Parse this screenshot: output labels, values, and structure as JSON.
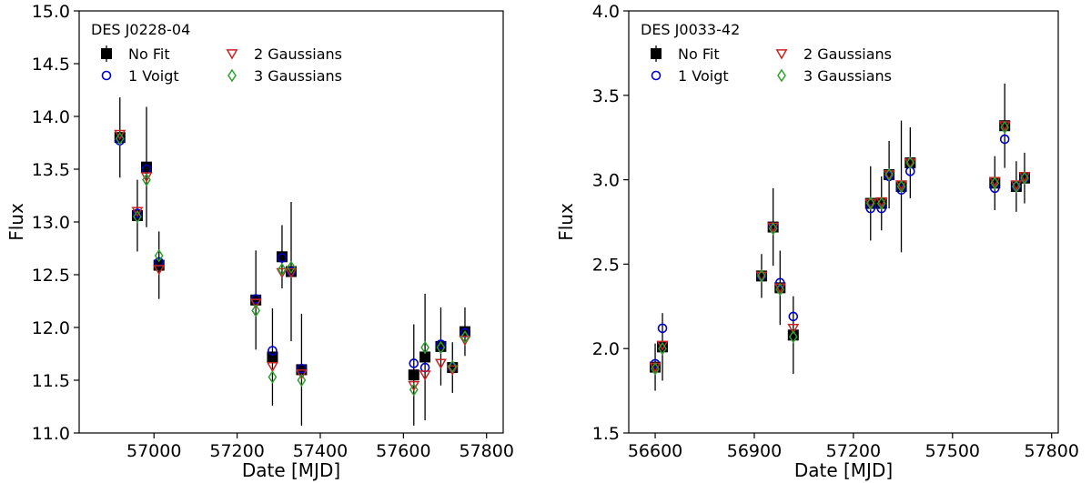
{
  "chart_data": [
    {
      "type": "scatter",
      "title": "DES J0228-04",
      "xlabel": "Date [MJD]",
      "ylabel": "Flux",
      "xlim": [
        56820,
        57840
      ],
      "ylim": [
        11.0,
        15.0
      ],
      "xticks": [
        57000,
        57200,
        57400,
        57600,
        57800
      ],
      "yticks": [
        11.0,
        11.5,
        12.0,
        12.5,
        13.0,
        13.5,
        14.0,
        14.5,
        15.0
      ],
      "legend_position": "top-left",
      "series": [
        {
          "name": "No Fit",
          "marker": "square",
          "color": "#000000",
          "points": [
            {
              "x": 56918,
              "y": 13.8,
              "err": 0.38
            },
            {
              "x": 56960,
              "y": 13.06,
              "err": 0.34
            },
            {
              "x": 56982,
              "y": 13.52,
              "err": 0.57
            },
            {
              "x": 57012,
              "y": 12.59,
              "err": 0.32
            },
            {
              "x": 57245,
              "y": 12.26,
              "err": 0.47
            },
            {
              "x": 57285,
              "y": 11.72,
              "err": 0.46
            },
            {
              "x": 57308,
              "y": 12.67,
              "err": 0.3
            },
            {
              "x": 57330,
              "y": 12.53,
              "err": 0.66
            },
            {
              "x": 57355,
              "y": 11.6,
              "err": 0.53
            },
            {
              "x": 57625,
              "y": 11.55,
              "err": 0.48
            },
            {
              "x": 57652,
              "y": 11.72,
              "err": 0.6
            },
            {
              "x": 57690,
              "y": 11.82,
              "err": 0.37
            },
            {
              "x": 57718,
              "y": 11.62,
              "err": 0.24
            },
            {
              "x": 57748,
              "y": 11.96,
              "err": 0.23
            }
          ]
        },
        {
          "name": "1 Voigt",
          "marker": "circle",
          "color": "#0000cc",
          "points": [
            {
              "x": 56918,
              "y": 13.77
            },
            {
              "x": 56960,
              "y": 13.08
            },
            {
              "x": 56982,
              "y": 13.5
            },
            {
              "x": 57012,
              "y": 12.62
            },
            {
              "x": 57245,
              "y": 12.27
            },
            {
              "x": 57285,
              "y": 11.78
            },
            {
              "x": 57308,
              "y": 12.66
            },
            {
              "x": 57330,
              "y": 12.53
            },
            {
              "x": 57355,
              "y": 11.61
            },
            {
              "x": 57625,
              "y": 11.66
            },
            {
              "x": 57652,
              "y": 11.62
            },
            {
              "x": 57690,
              "y": 11.84
            },
            {
              "x": 57718,
              "y": 11.62
            },
            {
              "x": 57748,
              "y": 11.95
            }
          ]
        },
        {
          "name": "2 Gaussians",
          "marker": "triangle-down",
          "color": "#cc2222",
          "points": [
            {
              "x": 56918,
              "y": 13.83
            },
            {
              "x": 56960,
              "y": 13.1
            },
            {
              "x": 56982,
              "y": 13.43
            },
            {
              "x": 57012,
              "y": 12.55
            },
            {
              "x": 57245,
              "y": 12.23
            },
            {
              "x": 57285,
              "y": 11.63
            },
            {
              "x": 57308,
              "y": 12.52
            },
            {
              "x": 57330,
              "y": 12.52
            },
            {
              "x": 57355,
              "y": 11.56
            },
            {
              "x": 57625,
              "y": 11.45
            },
            {
              "x": 57652,
              "y": 11.55
            },
            {
              "x": 57690,
              "y": 11.66
            },
            {
              "x": 57718,
              "y": 11.6
            },
            {
              "x": 57748,
              "y": 11.88
            }
          ]
        },
        {
          "name": "3 Gaussians",
          "marker": "diamond",
          "color": "#2ca02c",
          "points": [
            {
              "x": 56918,
              "y": 13.79
            },
            {
              "x": 56960,
              "y": 13.05
            },
            {
              "x": 56982,
              "y": 13.4
            },
            {
              "x": 57012,
              "y": 12.68
            },
            {
              "x": 57245,
              "y": 12.16
            },
            {
              "x": 57285,
              "y": 11.53
            },
            {
              "x": 57308,
              "y": 12.55
            },
            {
              "x": 57330,
              "y": 12.57
            },
            {
              "x": 57355,
              "y": 11.5
            },
            {
              "x": 57625,
              "y": 11.41
            },
            {
              "x": 57652,
              "y": 11.81
            },
            {
              "x": 57690,
              "y": 11.81
            },
            {
              "x": 57718,
              "y": 11.63
            },
            {
              "x": 57748,
              "y": 11.91
            }
          ]
        }
      ]
    },
    {
      "type": "scatter",
      "title": "DES J0033-42",
      "xlabel": "Date [MJD]",
      "ylabel": "Flux",
      "xlim": [
        56520,
        57820
      ],
      "ylim": [
        1.5,
        4.0
      ],
      "xticks": [
        56600,
        56900,
        57200,
        57500,
        57800
      ],
      "yticks": [
        1.5,
        2.0,
        2.5,
        3.0,
        3.5,
        4.0
      ],
      "legend_position": "top-left",
      "series": [
        {
          "name": "No Fit",
          "marker": "square",
          "color": "#000000",
          "points": [
            {
              "x": 56600,
              "y": 1.89,
              "err": 0.14
            },
            {
              "x": 56622,
              "y": 2.01,
              "err": 0.2
            },
            {
              "x": 56922,
              "y": 2.43,
              "err": 0.13
            },
            {
              "x": 56957,
              "y": 2.72,
              "err": 0.23
            },
            {
              "x": 56978,
              "y": 2.36,
              "err": 0.22
            },
            {
              "x": 57018,
              "y": 2.08,
              "err": 0.23
            },
            {
              "x": 57252,
              "y": 2.86,
              "err": 0.22
            },
            {
              "x": 57285,
              "y": 2.86,
              "err": 0.16
            },
            {
              "x": 57308,
              "y": 3.03,
              "err": 0.2
            },
            {
              "x": 57345,
              "y": 2.96,
              "err": 0.39
            },
            {
              "x": 57372,
              "y": 3.1,
              "err": 0.21
            },
            {
              "x": 57628,
              "y": 2.98,
              "err": 0.16
            },
            {
              "x": 57658,
              "y": 3.32,
              "err": 0.25
            },
            {
              "x": 57693,
              "y": 2.96,
              "err": 0.15
            },
            {
              "x": 57718,
              "y": 3.01,
              "err": 0.15
            }
          ]
        },
        {
          "name": "1 Voigt",
          "marker": "circle",
          "color": "#0000cc",
          "points": [
            {
              "x": 56600,
              "y": 1.91
            },
            {
              "x": 56622,
              "y": 2.12
            },
            {
              "x": 56922,
              "y": 2.43
            },
            {
              "x": 56957,
              "y": 2.72
            },
            {
              "x": 56978,
              "y": 2.39
            },
            {
              "x": 57018,
              "y": 2.19
            },
            {
              "x": 57252,
              "y": 2.83
            },
            {
              "x": 57285,
              "y": 2.83
            },
            {
              "x": 57308,
              "y": 3.02
            },
            {
              "x": 57345,
              "y": 2.94
            },
            {
              "x": 57372,
              "y": 3.05
            },
            {
              "x": 57628,
              "y": 2.95
            },
            {
              "x": 57658,
              "y": 3.24
            },
            {
              "x": 57693,
              "y": 2.96
            },
            {
              "x": 57718,
              "y": 3.01
            }
          ]
        },
        {
          "name": "2 Gaussians",
          "marker": "triangle-down",
          "color": "#cc2222",
          "points": [
            {
              "x": 56600,
              "y": 1.89
            },
            {
              "x": 56622,
              "y": 2.02
            },
            {
              "x": 56922,
              "y": 2.43
            },
            {
              "x": 56957,
              "y": 2.72
            },
            {
              "x": 56978,
              "y": 2.36
            },
            {
              "x": 57018,
              "y": 2.12
            },
            {
              "x": 57252,
              "y": 2.86
            },
            {
              "x": 57285,
              "y": 2.87
            },
            {
              "x": 57308,
              "y": 3.03
            },
            {
              "x": 57345,
              "y": 2.97
            },
            {
              "x": 57372,
              "y": 3.1
            },
            {
              "x": 57628,
              "y": 2.99
            },
            {
              "x": 57658,
              "y": 3.32
            },
            {
              "x": 57693,
              "y": 2.97
            },
            {
              "x": 57718,
              "y": 3.02
            }
          ]
        },
        {
          "name": "3 Gaussians",
          "marker": "diamond",
          "color": "#2ca02c",
          "points": [
            {
              "x": 56600,
              "y": 1.88
            },
            {
              "x": 56622,
              "y": 2.0
            },
            {
              "x": 56922,
              "y": 2.43
            },
            {
              "x": 56957,
              "y": 2.71
            },
            {
              "x": 56978,
              "y": 2.35
            },
            {
              "x": 57018,
              "y": 2.07
            },
            {
              "x": 57252,
              "y": 2.86
            },
            {
              "x": 57285,
              "y": 2.86
            },
            {
              "x": 57308,
              "y": 3.03
            },
            {
              "x": 57345,
              "y": 2.96
            },
            {
              "x": 57372,
              "y": 3.1
            },
            {
              "x": 57628,
              "y": 2.98
            },
            {
              "x": 57658,
              "y": 3.31
            },
            {
              "x": 57693,
              "y": 2.96
            },
            {
              "x": 57718,
              "y": 3.01
            }
          ]
        }
      ]
    }
  ]
}
